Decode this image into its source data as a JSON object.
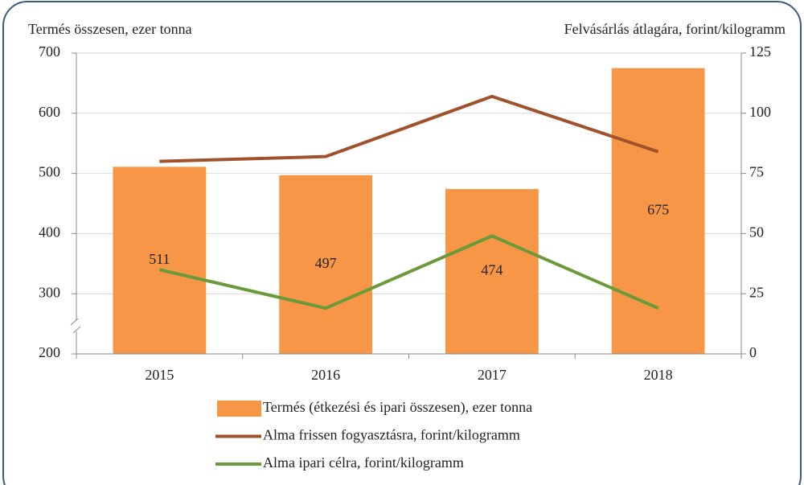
{
  "chart_data": {
    "type": "bar",
    "y_axis_title": "Termés összesen, ezer tonna",
    "y2_axis_title": "Felvásárlás átlagára, forint/kilogramm",
    "categories": [
      "2015",
      "2016",
      "2017",
      "2018"
    ],
    "series": [
      {
        "name": "Termés (étkezési és ipari összesen), ezer tonna",
        "type": "bar",
        "color": "#f79646",
        "values": [
          511,
          497,
          474,
          675
        ],
        "data_labels": true
      },
      {
        "name": "Alma frissen fogyasztásra, forint/kilogramm",
        "type": "line",
        "axis": "y2",
        "color": "#a0522d",
        "values": [
          80,
          82,
          107,
          84
        ]
      },
      {
        "name": "Alma ipari célra, forint/kilogramm",
        "type": "line",
        "axis": "y2",
        "color": "#6a9a3a",
        "values": [
          35,
          19,
          49,
          19
        ]
      }
    ],
    "ylim": [
      200,
      700
    ],
    "yticks": [
      200,
      300,
      400,
      500,
      600,
      700
    ],
    "y2lim": [
      0,
      125
    ],
    "y2ticks": [
      0,
      25,
      50,
      75,
      100,
      125
    ],
    "grid": true
  }
}
